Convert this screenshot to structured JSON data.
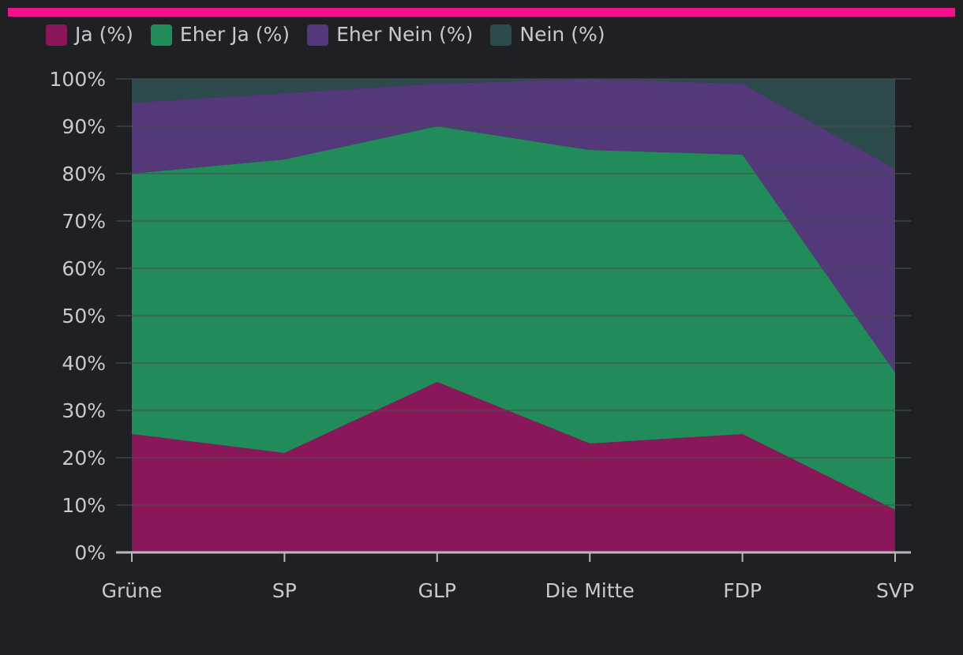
{
  "colors": {
    "top_bar": "#f0128c",
    "background": "#1f2023",
    "text": "#c9c9cc",
    "grid": "#4a4d52",
    "axis": "#b8b8bb"
  },
  "chart_data": {
    "type": "area",
    "stacked": true,
    "normalized_percent": true,
    "categories": [
      "Grüne",
      "SP",
      "GLP",
      "Die Mitte",
      "FDP",
      "SVP"
    ],
    "series": [
      {
        "name": "Ja (%)",
        "color": "#8a1759",
        "values": [
          25,
          21,
          36,
          23,
          25,
          9
        ]
      },
      {
        "name": "Eher Ja (%)",
        "color": "#228b5a",
        "values": [
          55,
          62,
          54,
          62,
          59,
          29
        ]
      },
      {
        "name": "Eher Nein (%)",
        "color": "#54397a",
        "values": [
          15,
          14,
          9,
          15,
          15,
          43
        ]
      },
      {
        "name": "Nein (%)",
        "color": "#2d4a4d",
        "values": [
          5,
          3,
          1,
          0,
          1,
          19
        ]
      }
    ],
    "yticks": [
      "0%",
      "10%",
      "20%",
      "30%",
      "40%",
      "50%",
      "60%",
      "70%",
      "80%",
      "90%",
      "100%"
    ],
    "ylim": [
      0,
      100
    ],
    "grid": true,
    "legend_position": "top-left",
    "title": "",
    "xlabel": "",
    "ylabel": ""
  }
}
